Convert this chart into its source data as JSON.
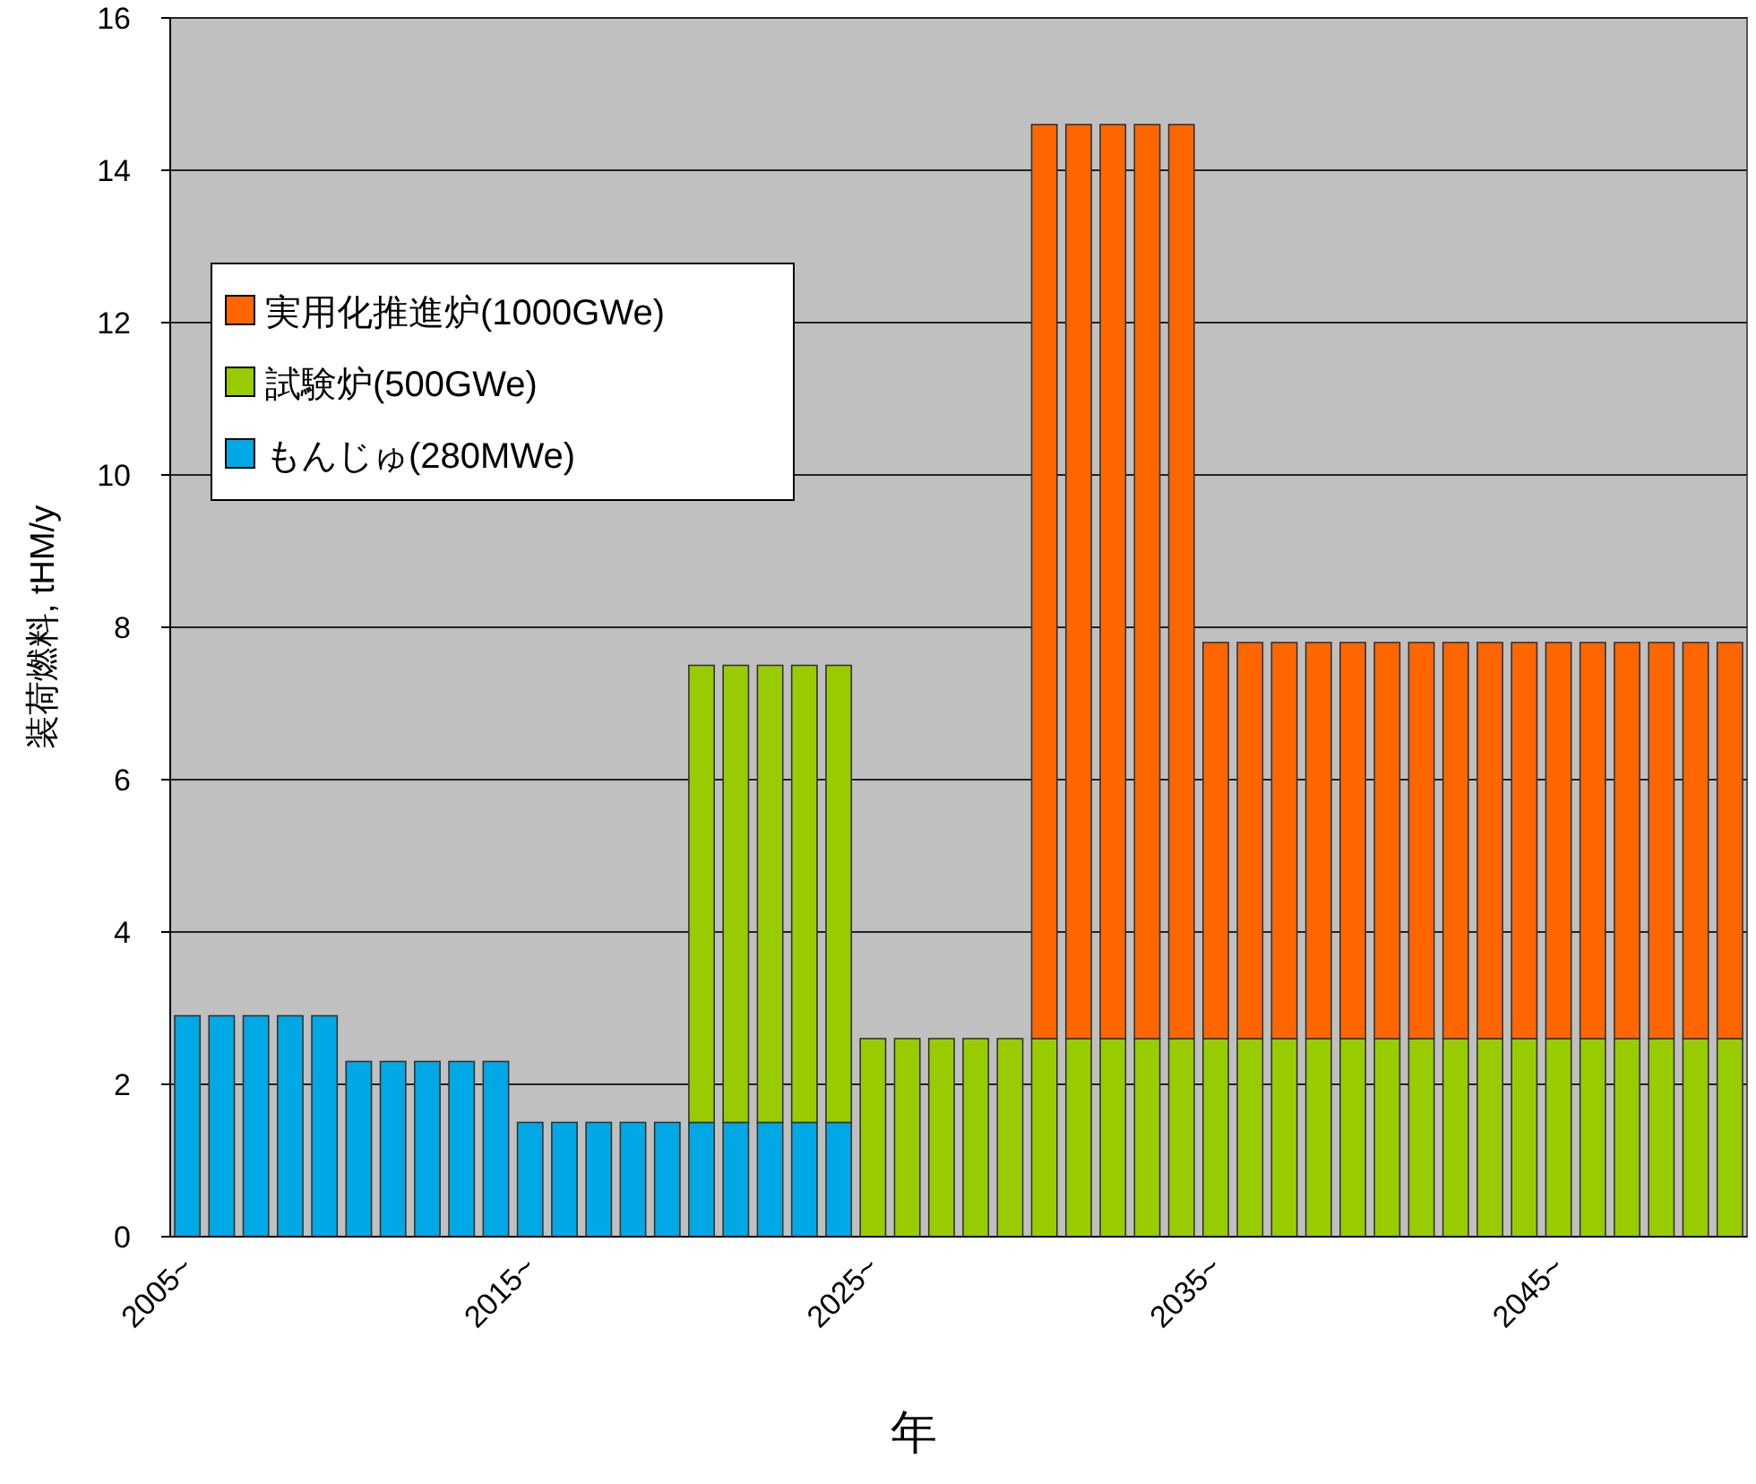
{
  "chart_data": {
    "type": "bar",
    "stacked": true,
    "xlabel": "年",
    "ylabel": "装荷燃料, tHM/y",
    "categories": [
      "2005~",
      null,
      null,
      null,
      null,
      null,
      null,
      null,
      null,
      null,
      "2015~",
      null,
      null,
      null,
      null,
      null,
      null,
      null,
      null,
      null,
      "2025~",
      null,
      null,
      null,
      null,
      null,
      null,
      null,
      null,
      null,
      "2035~",
      null,
      null,
      null,
      null,
      null,
      null,
      null,
      null,
      null,
      "2045~",
      null,
      null,
      null,
      null,
      null
    ],
    "series": [
      {
        "name": "もんじゅ(280MWe)",
        "color": "#00a8e6",
        "values": [
          2.9,
          2.9,
          2.9,
          2.9,
          2.9,
          2.3,
          2.3,
          2.3,
          2.3,
          2.3,
          1.5,
          1.5,
          1.5,
          1.5,
          1.5,
          1.5,
          1.5,
          1.5,
          1.5,
          1.5,
          null,
          null,
          null,
          null,
          null,
          null,
          null,
          null,
          null,
          null,
          null,
          null,
          null,
          null,
          null,
          null,
          null,
          null,
          null,
          null,
          null,
          null,
          null,
          null,
          null,
          null
        ]
      },
      {
        "name": "試験炉(500GWe)",
        "color": "#99cc00",
        "values": [
          null,
          null,
          null,
          null,
          null,
          null,
          null,
          null,
          null,
          null,
          null,
          null,
          null,
          null,
          null,
          6.0,
          6.0,
          6.0,
          6.0,
          6.0,
          2.6,
          2.6,
          2.6,
          2.6,
          2.6,
          2.6,
          2.6,
          2.6,
          2.6,
          2.6,
          2.6,
          2.6,
          2.6,
          2.6,
          2.6,
          2.6,
          2.6,
          2.6,
          2.6,
          2.6,
          2.6,
          2.6,
          2.6,
          2.6,
          2.6,
          2.6
        ]
      },
      {
        "name": "実用化推進炉(1000GWe)",
        "color": "#ff6600",
        "values": [
          null,
          null,
          null,
          null,
          null,
          null,
          null,
          null,
          null,
          null,
          null,
          null,
          null,
          null,
          null,
          null,
          null,
          null,
          null,
          null,
          null,
          null,
          null,
          null,
          null,
          12.0,
          12.0,
          12.0,
          12.0,
          12.0,
          5.2,
          5.2,
          5.2,
          5.2,
          5.2,
          5.2,
          5.2,
          5.2,
          5.2,
          5.2,
          5.2,
          5.2,
          5.2,
          5.2,
          5.2,
          5.2
        ]
      }
    ],
    "ylim": [
      0,
      16
    ],
    "yticks": [
      0,
      2,
      4,
      6,
      8,
      10,
      12,
      14,
      16
    ],
    "grid": "y",
    "legend": "top left"
  }
}
